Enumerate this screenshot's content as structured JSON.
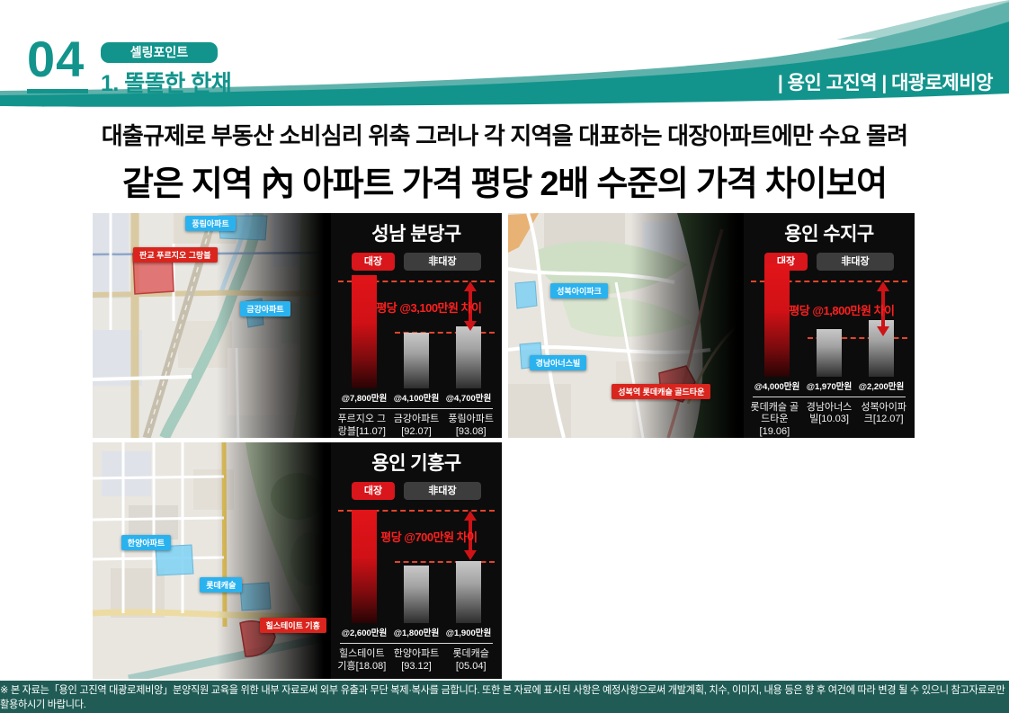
{
  "header": {
    "number": "04",
    "badge": "셀링포인트",
    "title": "1. 똘똘한 한채",
    "right_label": "| 용인 고진역 | 대광로제비앙"
  },
  "headline": {
    "line1": "대출규제로 부동산 소비심리 위축 그러나 각 지역을 대표하는 대장아파트에만 수요 몰려",
    "line2": "같은 지역 內 아파트 가격 평당 2배 수준의 가격 차이보여"
  },
  "legend": {
    "leader": "대장",
    "non_leader": "非대장"
  },
  "colors": {
    "teal": "#12948c",
    "teal_light": "#5fb2ab",
    "footer_bg": "#205c55",
    "leader_red": "#d8161b",
    "non_leader_gray": "#3d3d3d",
    "annotation_red": "#ff1f1f",
    "map_label_blue": "#2ab2ef",
    "map_label_red": "#d9251d"
  },
  "panels": [
    {
      "map_labels": [
        {
          "text": "풍림아파트",
          "color": "blue"
        },
        {
          "text": "판교 푸르지오 그랑블",
          "color": "red"
        },
        {
          "text": "금강아파트",
          "color": "blue"
        }
      ],
      "chart": {
        "title": "성남 분당구",
        "diff_label": "평당 @3,100만원 차이",
        "bars": [
          {
            "name": "푸르지오 그랑블",
            "date": "[11.07]",
            "value_label": "@7,800만원",
            "type": "leader",
            "h": 1.0
          },
          {
            "name": "금강아파트",
            "date": "[92.07]",
            "value_label": "@4,100만원",
            "type": "non_leader",
            "h": 0.49
          },
          {
            "name": "풍림아파트",
            "date": "[93.08]",
            "value_label": "@4,700만원",
            "type": "non_leader",
            "h": 0.55
          }
        ]
      }
    },
    {
      "map_labels": [
        {
          "text": "성복아이파크",
          "color": "blue"
        },
        {
          "text": "경남아너스빌",
          "color": "blue"
        },
        {
          "text": "성복역 롯데캐슬 골드타운",
          "color": "red"
        }
      ],
      "chart": {
        "title": "용인 수지구",
        "diff_label": "평당 @1,800만원 차이",
        "bars": [
          {
            "name": "롯데캐슬 골드타운",
            "date": "[19.06]",
            "value_label": "@4,000만원",
            "type": "leader",
            "h": 1.0
          },
          {
            "name": "경남아너스빌",
            "date": "[10.03]",
            "value_label": "@1,970만원",
            "type": "non_leader",
            "h": 0.42
          },
          {
            "name": "성복아이파크",
            "date": "[12.07]",
            "value_label": "@2,200만원",
            "type": "non_leader",
            "h": 0.5
          }
        ]
      }
    },
    {
      "map_labels": [
        {
          "text": "한양아파트",
          "color": "blue"
        },
        {
          "text": "롯데캐슬",
          "color": "blue"
        },
        {
          "text": "힐스테이트 기흥",
          "color": "red"
        }
      ],
      "chart": {
        "title": "용인 기흥구",
        "diff_label": "평당 @700만원 차이",
        "bars": [
          {
            "name": "힐스테이트 기흥",
            "date": "[18.08]",
            "value_label": "@2,600만원",
            "type": "leader",
            "h": 1.0
          },
          {
            "name": "한양아파트",
            "date": "[93.12]",
            "value_label": "@1,800만원",
            "type": "non_leader",
            "h": 0.51
          },
          {
            "name": "롯데캐슬",
            "date": "[05.04]",
            "value_label": "@1,900만원",
            "type": "non_leader",
            "h": 0.55
          }
        ]
      }
    }
  ],
  "chart_data": [
    {
      "type": "bar",
      "title": "성남 분당구",
      "categories": [
        "푸르지오 그랑블 [11.07]",
        "금강아파트 [92.07]",
        "풍림아파트 [93.08]"
      ],
      "values": [
        7800,
        4100,
        4700
      ],
      "unit": "만원/평",
      "legend": [
        "대장",
        "非대장"
      ],
      "annotation": "평당 @3,100만원 차이"
    },
    {
      "type": "bar",
      "title": "용인 수지구",
      "categories": [
        "롯데캐슬 골드타운 [19.06]",
        "경남아너스빌 [10.03]",
        "성복아이파크 [12.07]"
      ],
      "values": [
        4000,
        1970,
        2200
      ],
      "unit": "만원/평",
      "legend": [
        "대장",
        "非대장"
      ],
      "annotation": "평당 @1,800만원 차이"
    },
    {
      "type": "bar",
      "title": "용인 기흥구",
      "categories": [
        "힐스테이트 기흥 [18.08]",
        "한양아파트 [93.12]",
        "롯데캐슬 [05.04]"
      ],
      "values": [
        2600,
        1800,
        1900
      ],
      "unit": "만원/평",
      "legend": [
        "대장",
        "非대장"
      ],
      "annotation": "평당 @700만원 차이"
    }
  ],
  "footer": {
    "text": "※ 본 자료는「용인 고진역 대광로제비앙」분양직원 교육을 위한 내부 자료로써 외부 유출과 무단 복제·복사를 금합니다. 또한 본 자료에 표시된 사항은 예정사항으로써 개발계획, 치수, 이미지, 내용 등은 향 후 여건에 따라 변경 될 수 있으니 참고자료로만 활용하시기 바랍니다."
  }
}
